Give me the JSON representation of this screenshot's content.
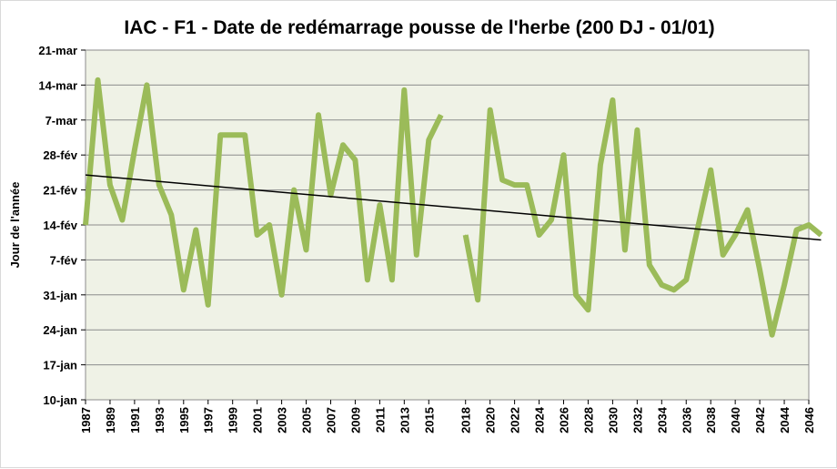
{
  "chart_data": {
    "type": "line",
    "title": "IAC - F1 - Date de redémarrage pousse de l'herbe (200 DJ - 01/01)",
    "xlabel": "",
    "ylabel": "Jour de l'année",
    "y_ticks": [
      {
        "label": "10-jan",
        "value": 10
      },
      {
        "label": "17-jan",
        "value": 17
      },
      {
        "label": "24-jan",
        "value": 24
      },
      {
        "label": "31-jan",
        "value": 31
      },
      {
        "label": "7-fév",
        "value": 38
      },
      {
        "label": "14-fév",
        "value": 45
      },
      {
        "label": "21-fév",
        "value": 52
      },
      {
        "label": "28-fév",
        "value": 59
      },
      {
        "label": "7-mar",
        "value": 66
      },
      {
        "label": "14-mar",
        "value": 73
      },
      {
        "label": "21-mar",
        "value": 80
      }
    ],
    "ylim": [
      10,
      80
    ],
    "xlim": [
      1987,
      2046
    ],
    "x_ticks": [
      "1987",
      "1989",
      "1991",
      "1993",
      "1995",
      "1997",
      "1999",
      "2001",
      "2003",
      "2005",
      "2007",
      "2009",
      "2011",
      "2013",
      "2015",
      "2018",
      "2020",
      "2022",
      "2024",
      "2026",
      "2028",
      "2030",
      "2032",
      "2034",
      "2036",
      "2038",
      "2040",
      "2042",
      "2044",
      "2046"
    ],
    "grid": true,
    "legend": "none",
    "colors": {
      "series": "#9bbb59",
      "trend": "#000000",
      "plot_bg": "#eff2e6",
      "grid": "#8c8c8c"
    },
    "series": [
      {
        "values": [
          {
            "x": 1987,
            "y": 45
          },
          {
            "x": 1988,
            "y": 74
          },
          {
            "x": 1989,
            "y": 53
          },
          {
            "x": 1990,
            "y": 46
          },
          {
            "x": 1991,
            "y": 60
          },
          {
            "x": 1992,
            "y": 73
          },
          {
            "x": 1993,
            "y": 53
          },
          {
            "x": 1994,
            "y": 47
          },
          {
            "x": 1995,
            "y": 32
          },
          {
            "x": 1996,
            "y": 44
          },
          {
            "x": 1997,
            "y": 29
          },
          {
            "x": 1998,
            "y": 63
          },
          {
            "x": 1999,
            "y": 63
          },
          {
            "x": 2000,
            "y": 63
          },
          {
            "x": 2001,
            "y": 43
          },
          {
            "x": 2002,
            "y": 45
          },
          {
            "x": 2003,
            "y": 31
          },
          {
            "x": 2004,
            "y": 52
          },
          {
            "x": 2005,
            "y": 40
          },
          {
            "x": 2006,
            "y": 67
          },
          {
            "x": 2007,
            "y": 51
          },
          {
            "x": 2008,
            "y": 61
          },
          {
            "x": 2009,
            "y": 58
          },
          {
            "x": 2010,
            "y": 34
          },
          {
            "x": 2011,
            "y": 49
          },
          {
            "x": 2012,
            "y": 34
          },
          {
            "x": 2013,
            "y": 72
          },
          {
            "x": 2014,
            "y": 39
          },
          {
            "x": 2015,
            "y": 62
          },
          {
            "x": 2016,
            "y": 67
          },
          {
            "x": 2018,
            "y": 43
          },
          {
            "x": 2019,
            "y": 30
          },
          {
            "x": 2020,
            "y": 68
          },
          {
            "x": 2021,
            "y": 54
          },
          {
            "x": 2022,
            "y": 53
          },
          {
            "x": 2023,
            "y": 53
          },
          {
            "x": 2024,
            "y": 43
          },
          {
            "x": 2025,
            "y": 46
          },
          {
            "x": 2026,
            "y": 59
          },
          {
            "x": 2027,
            "y": 31
          },
          {
            "x": 2028,
            "y": 28
          },
          {
            "x": 2029,
            "y": 57
          },
          {
            "x": 2030,
            "y": 70
          },
          {
            "x": 2031,
            "y": 40
          },
          {
            "x": 2032,
            "y": 64
          },
          {
            "x": 2033,
            "y": 37
          },
          {
            "x": 2034,
            "y": 33
          },
          {
            "x": 2035,
            "y": 32
          },
          {
            "x": 2036,
            "y": 34
          },
          {
            "x": 2037,
            "y": 45
          },
          {
            "x": 2038,
            "y": 56
          },
          {
            "x": 2039,
            "y": 39
          },
          {
            "x": 2040,
            "y": 43
          },
          {
            "x": 2041,
            "y": 48
          },
          {
            "x": 2042,
            "y": 36
          },
          {
            "x": 2043,
            "y": 23
          },
          {
            "x": 2044,
            "y": 33
          },
          {
            "x": 2045,
            "y": 44
          },
          {
            "x": 2046,
            "y": 45
          },
          {
            "x": 2047,
            "y": 43
          }
        ]
      }
    ],
    "trendline": {
      "start": {
        "x": 1987,
        "y": 55
      },
      "end": {
        "x": 2047,
        "y": 42
      }
    }
  }
}
